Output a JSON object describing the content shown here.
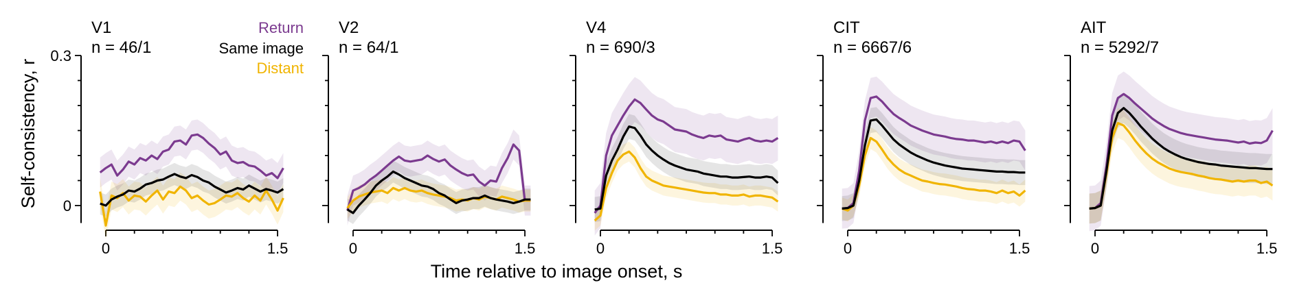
{
  "figure": {
    "ylabel": "Self-consistency, r",
    "xlabel": "Time relative to image onset, s",
    "legend": [
      {
        "name": "Return",
        "color": "#7b3a8f"
      },
      {
        "name": "Same image",
        "color": "#000000"
      },
      {
        "name": "Distant",
        "color": "#f0b400"
      }
    ]
  },
  "chart_data": {
    "type": "line",
    "ylabel": "Self-consistency, r",
    "xlabel": "Time relative to image onset, s",
    "ylim": [
      -0.05,
      0.3
    ],
    "yticks": [
      0,
      0.3
    ],
    "ytick_labels": [
      "0",
      "0.3"
    ],
    "xlim": [
      -0.05,
      1.55
    ],
    "xticks": [
      0,
      1.5
    ],
    "xtick_labels": [
      "0",
      "1.5"
    ],
    "legend_location": "top-right of first panel",
    "x": [
      -0.05,
      0.0,
      0.05,
      0.1,
      0.15,
      0.2,
      0.25,
      0.3,
      0.35,
      0.4,
      0.45,
      0.5,
      0.55,
      0.6,
      0.65,
      0.7,
      0.75,
      0.8,
      0.85,
      0.9,
      0.95,
      1.0,
      1.05,
      1.1,
      1.15,
      1.2,
      1.25,
      1.3,
      1.35,
      1.4,
      1.45,
      1.5,
      1.55
    ],
    "panels": [
      {
        "title": "V1",
        "count": "n = 46/1",
        "series": [
          {
            "name": "Return",
            "color": "#7b3a8f",
            "band": 0.03,
            "values": [
              0.066,
              0.075,
              0.082,
              0.06,
              0.072,
              0.088,
              0.082,
              0.095,
              0.09,
              0.1,
              0.093,
              0.108,
              0.112,
              0.128,
              0.13,
              0.122,
              0.14,
              0.142,
              0.135,
              0.124,
              0.115,
              0.102,
              0.108,
              0.09,
              0.085,
              0.087,
              0.08,
              0.078,
              0.07,
              0.06,
              0.065,
              0.055,
              0.075
            ]
          },
          {
            "name": "Same image",
            "color": "#000000",
            "band": 0.022,
            "values": [
              0.004,
              0.0,
              0.012,
              0.018,
              0.022,
              0.03,
              0.028,
              0.034,
              0.042,
              0.045,
              0.05,
              0.052,
              0.058,
              0.063,
              0.058,
              0.055,
              0.061,
              0.057,
              0.05,
              0.046,
              0.038,
              0.032,
              0.026,
              0.03,
              0.035,
              0.032,
              0.04,
              0.034,
              0.028,
              0.033,
              0.03,
              0.026,
              0.033
            ]
          },
          {
            "name": "Distant",
            "color": "#f0b400",
            "band": 0.028,
            "values": [
              0.028,
              -0.04,
              0.02,
              0.015,
              0.025,
              0.01,
              0.02,
              0.018,
              0.008,
              0.02,
              0.03,
              0.012,
              0.028,
              0.025,
              0.038,
              0.03,
              0.015,
              0.02,
              0.01,
              0.002,
              0.005,
              0.012,
              0.02,
              0.018,
              0.025,
              0.015,
              0.008,
              0.02,
              0.01,
              0.03,
              0.012,
              -0.01,
              0.015
            ]
          }
        ]
      },
      {
        "title": "V2",
        "count": "n = 64/1",
        "series": [
          {
            "name": "Return",
            "color": "#7b3a8f",
            "band": 0.03,
            "values": [
              -0.01,
              0.03,
              0.035,
              0.042,
              0.052,
              0.06,
              0.07,
              0.08,
              0.09,
              0.098,
              0.09,
              0.088,
              0.09,
              0.092,
              0.1,
              0.093,
              0.088,
              0.092,
              0.08,
              0.072,
              0.065,
              0.06,
              0.062,
              0.048,
              0.04,
              0.05,
              0.048,
              0.075,
              0.095,
              0.122,
              0.11,
              0.01,
              0.01
            ]
          },
          {
            "name": "Same image",
            "color": "#000000",
            "band": 0.022,
            "values": [
              -0.008,
              -0.015,
              0.0,
              0.012,
              0.025,
              0.04,
              0.05,
              0.058,
              0.068,
              0.062,
              0.055,
              0.05,
              0.045,
              0.04,
              0.038,
              0.033,
              0.025,
              0.02,
              0.012,
              0.005,
              0.01,
              0.012,
              0.015,
              0.015,
              0.02,
              0.015,
              0.012,
              0.01,
              0.008,
              0.005,
              0.008,
              0.012,
              0.012
            ]
          },
          {
            "name": "Distant",
            "color": "#f0b400",
            "band": 0.022,
            "values": [
              -0.005,
              0.01,
              0.018,
              0.022,
              0.026,
              0.028,
              0.03,
              0.025,
              0.035,
              0.03,
              0.035,
              0.03,
              0.028,
              0.03,
              0.025,
              0.022,
              0.02,
              0.018,
              0.015,
              0.01,
              0.012,
              0.01,
              0.015,
              0.012,
              0.018,
              0.015,
              0.012,
              0.018,
              0.015,
              0.012,
              0.008,
              0.01,
              0.01
            ]
          }
        ]
      },
      {
        "title": "V4",
        "count": "n = 690/3",
        "series": [
          {
            "name": "Return",
            "color": "#7b3a8f",
            "band": 0.045,
            "values": [
              -0.015,
              0.0,
              0.1,
              0.14,
              0.16,
              0.18,
              0.198,
              0.212,
              0.205,
              0.192,
              0.18,
              0.172,
              0.168,
              0.16,
              0.152,
              0.15,
              0.148,
              0.142,
              0.138,
              0.135,
              0.14,
              0.138,
              0.14,
              0.132,
              0.13,
              0.128,
              0.132,
              0.135,
              0.13,
              0.128,
              0.13,
              0.128,
              0.135
            ]
          },
          {
            "name": "Same image",
            "color": "#000000",
            "band": 0.025,
            "values": [
              -0.008,
              -0.006,
              0.06,
              0.09,
              0.112,
              0.138,
              0.158,
              0.155,
              0.14,
              0.122,
              0.11,
              0.1,
              0.092,
              0.085,
              0.08,
              0.076,
              0.072,
              0.07,
              0.068,
              0.064,
              0.062,
              0.06,
              0.058,
              0.058,
              0.056,
              0.056,
              0.057,
              0.058,
              0.056,
              0.056,
              0.058,
              0.056,
              0.045
            ]
          },
          {
            "name": "Distant",
            "color": "#f0b400",
            "band": 0.02,
            "values": [
              -0.03,
              -0.02,
              0.035,
              0.065,
              0.09,
              0.102,
              0.108,
              0.096,
              0.075,
              0.058,
              0.05,
              0.045,
              0.04,
              0.038,
              0.036,
              0.034,
              0.032,
              0.03,
              0.028,
              0.026,
              0.025,
              0.025,
              0.022,
              0.022,
              0.02,
              0.02,
              0.022,
              0.018,
              0.02,
              0.02,
              0.018,
              0.016,
              0.008
            ]
          }
        ]
      },
      {
        "title": "CIT",
        "count": "n = 6667/6",
        "series": [
          {
            "name": "Return",
            "color": "#7b3a8f",
            "band": 0.04,
            "values": [
              -0.006,
              -0.005,
              0.005,
              0.07,
              0.17,
              0.215,
              0.218,
              0.208,
              0.195,
              0.183,
              0.175,
              0.168,
              0.16,
              0.155,
              0.15,
              0.146,
              0.142,
              0.14,
              0.138,
              0.135,
              0.133,
              0.132,
              0.13,
              0.13,
              0.128,
              0.126,
              0.128,
              0.125,
              0.128,
              0.125,
              0.13,
              0.128,
              0.11
            ]
          },
          {
            "name": "Same image",
            "color": "#000000",
            "band": 0.025,
            "values": [
              -0.006,
              -0.005,
              0.0,
              0.05,
              0.12,
              0.17,
              0.172,
              0.16,
              0.146,
              0.132,
              0.122,
              0.114,
              0.106,
              0.1,
              0.095,
              0.09,
              0.086,
              0.083,
              0.08,
              0.078,
              0.076,
              0.074,
              0.073,
              0.072,
              0.071,
              0.07,
              0.069,
              0.068,
              0.068,
              0.067,
              0.067,
              0.066,
              0.066
            ]
          },
          {
            "name": "Distant",
            "color": "#f0b400",
            "band": 0.022,
            "values": [
              -0.006,
              -0.01,
              0.0,
              0.04,
              0.1,
              0.135,
              0.128,
              0.112,
              0.095,
              0.082,
              0.072,
              0.065,
              0.06,
              0.055,
              0.05,
              0.048,
              0.045,
              0.043,
              0.042,
              0.04,
              0.038,
              0.035,
              0.033,
              0.032,
              0.03,
              0.03,
              0.028,
              0.025,
              0.03,
              0.025,
              0.028,
              0.02,
              0.03
            ]
          }
        ]
      },
      {
        "title": "AIT",
        "count": "n = 5292/7",
        "series": [
          {
            "name": "Return",
            "color": "#7b3a8f",
            "band": 0.045,
            "values": [
              -0.006,
              -0.005,
              0.005,
              0.08,
              0.18,
              0.215,
              0.223,
              0.215,
              0.204,
              0.194,
              0.184,
              0.174,
              0.166,
              0.159,
              0.153,
              0.149,
              0.145,
              0.142,
              0.14,
              0.138,
              0.136,
              0.134,
              0.132,
              0.131,
              0.13,
              0.128,
              0.126,
              0.128,
              0.124,
              0.126,
              0.125,
              0.13,
              0.15
            ]
          },
          {
            "name": "Same image",
            "color": "#000000",
            "band": 0.03,
            "values": [
              -0.006,
              -0.005,
              0.0,
              0.07,
              0.15,
              0.185,
              0.195,
              0.185,
              0.172,
              0.158,
              0.146,
              0.134,
              0.124,
              0.115,
              0.108,
              0.102,
              0.097,
              0.093,
              0.09,
              0.087,
              0.085,
              0.083,
              0.082,
              0.08,
              0.079,
              0.078,
              0.077,
              0.076,
              0.075,
              0.075,
              0.074,
              0.073,
              0.073
            ]
          },
          {
            "name": "Distant",
            "color": "#f0b400",
            "band": 0.03,
            "values": [
              -0.006,
              -0.005,
              0.0,
              0.065,
              0.135,
              0.165,
              0.16,
              0.146,
              0.13,
              0.116,
              0.104,
              0.094,
              0.086,
              0.08,
              0.074,
              0.07,
              0.067,
              0.065,
              0.063,
              0.06,
              0.058,
              0.055,
              0.053,
              0.052,
              0.05,
              0.048,
              0.05,
              0.048,
              0.05,
              0.05,
              0.045,
              0.048,
              0.04
            ]
          }
        ]
      }
    ]
  }
}
